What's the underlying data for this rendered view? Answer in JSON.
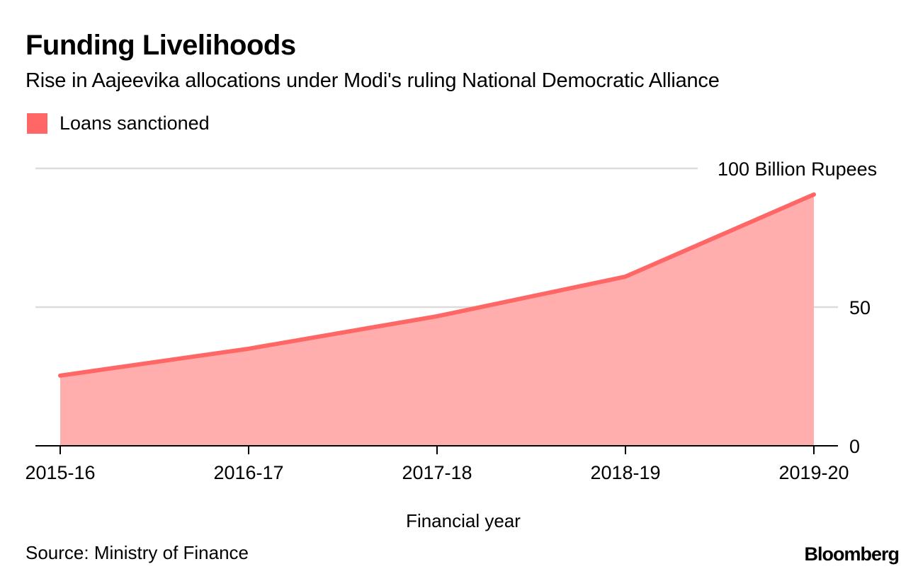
{
  "header": {
    "title": "Funding Livelihoods",
    "subtitle": "Rise in Aajeevika allocations under Modi's ruling National Democratic Alliance"
  },
  "legend": {
    "items": [
      {
        "label": "Loans sanctioned",
        "color": "#ff6666"
      }
    ]
  },
  "footer": {
    "source": "Source: Ministry of Finance",
    "logo": "Bloomberg"
  },
  "colors": {
    "line": "#ff6666",
    "area": "#ffadad",
    "gridline": "#dcdcdc",
    "axis": "#000000"
  },
  "chart_data": {
    "type": "area",
    "title": "Funding Livelihoods",
    "subtitle": "Rise in Aajeevika allocations under Modi's ruling National Democratic Alliance",
    "xlabel": "Financial year",
    "ylabel": "",
    "unit_label": "Billion Rupees",
    "categories": [
      "2015-16",
      "2016-17",
      "2017-18",
      "2018-19",
      "2019-20"
    ],
    "series": [
      {
        "name": "Loans sanctioned",
        "values": [
          25.3,
          35.0,
          46.7,
          61.0,
          90.6
        ]
      }
    ],
    "ylim": [
      0,
      100
    ],
    "yticks": [
      0,
      50,
      100
    ],
    "ytick_labels": [
      "0",
      "50",
      "100 Billion Rupees"
    ],
    "y_axis_position": "right",
    "grid": true,
    "legend_position": "top-left",
    "source": "Source: Ministry of Finance"
  }
}
